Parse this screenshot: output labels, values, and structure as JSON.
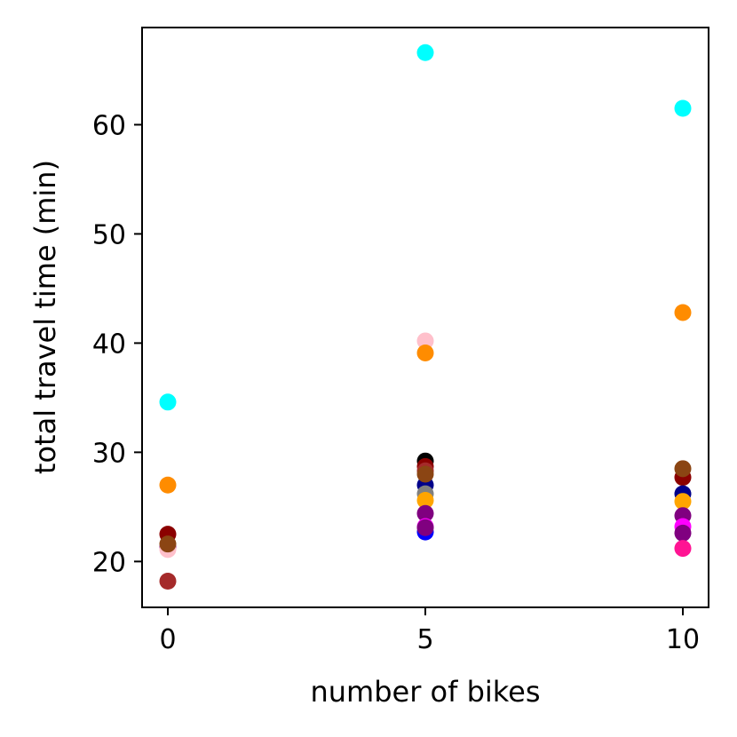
{
  "chart_data": {
    "type": "scatter",
    "title": "",
    "xlabel": "number of bikes",
    "ylabel": "total travel time (min)",
    "xlim": [
      -0.5,
      10.5
    ],
    "ylim": [
      15.8,
      68.9
    ],
    "xticks": [
      0,
      5,
      10
    ],
    "yticks": [
      20,
      30,
      40,
      50,
      60
    ],
    "grid": false,
    "legend": "none",
    "points": [
      {
        "x": 0,
        "y": 34.6,
        "color": "#00ffff"
      },
      {
        "x": 0,
        "y": 27.0,
        "color": "#ff8c00"
      },
      {
        "x": 0,
        "y": 22.5,
        "color": "#8b0000"
      },
      {
        "x": 0,
        "y": 21.3,
        "color": "#800080"
      },
      {
        "x": 0,
        "y": 21.1,
        "color": "#ffc0cb"
      },
      {
        "x": 0,
        "y": 21.6,
        "color": "#8b4513"
      },
      {
        "x": 0,
        "y": 18.2,
        "color": "#a52a2a"
      },
      {
        "x": 5,
        "y": 66.6,
        "color": "#00ffff"
      },
      {
        "x": 5,
        "y": 40.2,
        "color": "#ffc0cb"
      },
      {
        "x": 5,
        "y": 39.1,
        "color": "#ff8c00"
      },
      {
        "x": 5,
        "y": 29.2,
        "color": "#000000"
      },
      {
        "x": 5,
        "y": 28.7,
        "color": "#8b0000"
      },
      {
        "x": 5,
        "y": 28.3,
        "color": "#a52a2a"
      },
      {
        "x": 5,
        "y": 27.0,
        "color": "#00008b"
      },
      {
        "x": 5,
        "y": 26.2,
        "color": "#808080"
      },
      {
        "x": 5,
        "y": 25.6,
        "color": "#ffa500"
      },
      {
        "x": 5,
        "y": 24.4,
        "color": "#800080"
      },
      {
        "x": 5,
        "y": 23.2,
        "color": "#ff00ff"
      },
      {
        "x": 5,
        "y": 22.7,
        "color": "#0000ff"
      },
      {
        "x": 5,
        "y": 23.1,
        "color": "#800080"
      },
      {
        "x": 5,
        "y": 28.0,
        "color": "#8b4513"
      },
      {
        "x": 10,
        "y": 61.5,
        "color": "#00ffff"
      },
      {
        "x": 10,
        "y": 42.8,
        "color": "#ff8c00"
      },
      {
        "x": 10,
        "y": 27.7,
        "color": "#8b0000"
      },
      {
        "x": 10,
        "y": 26.2,
        "color": "#00008b"
      },
      {
        "x": 10,
        "y": 25.5,
        "color": "#ffa500"
      },
      {
        "x": 10,
        "y": 24.2,
        "color": "#800080"
      },
      {
        "x": 10,
        "y": 23.2,
        "color": "#ff00ff"
      },
      {
        "x": 10,
        "y": 22.6,
        "color": "#800080"
      },
      {
        "x": 10,
        "y": 21.2,
        "color": "#ff1493"
      },
      {
        "x": 10,
        "y": 28.5,
        "color": "#8b4513"
      }
    ]
  }
}
